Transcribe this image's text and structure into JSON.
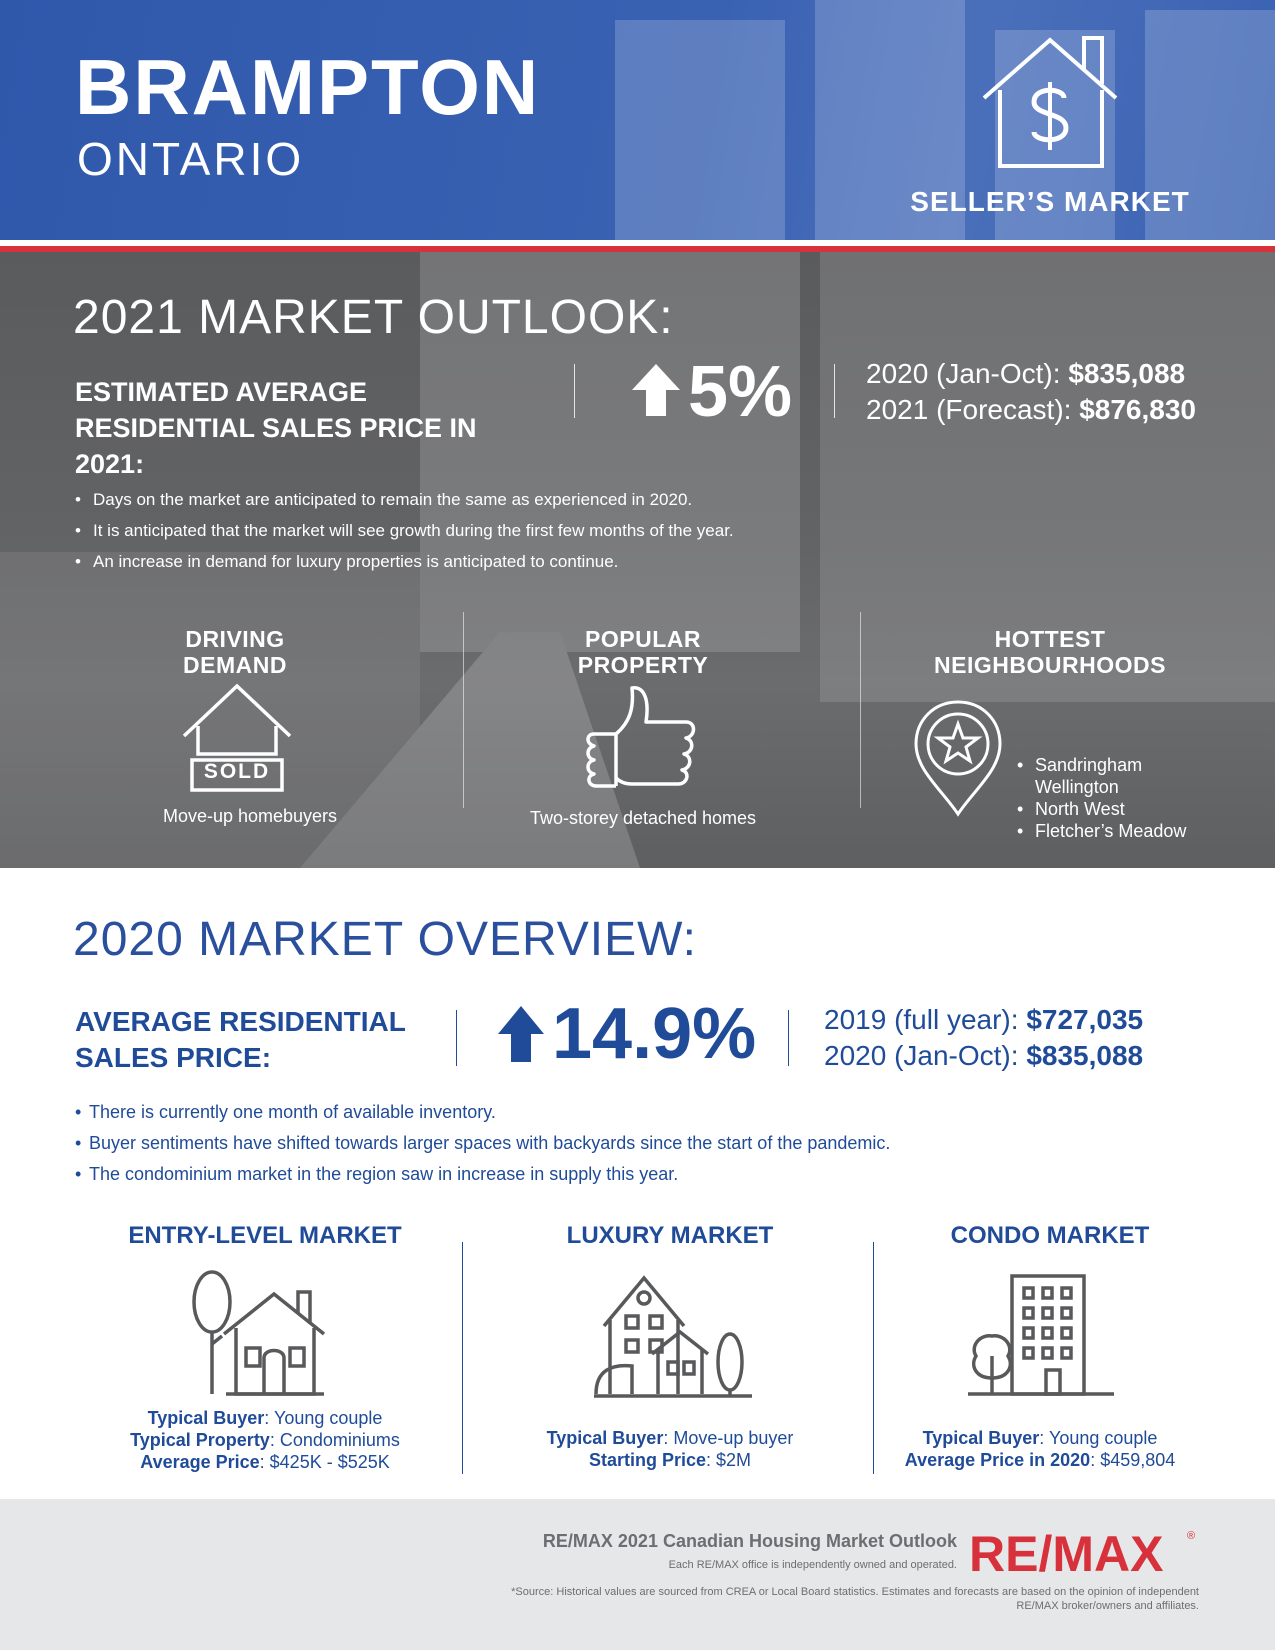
{
  "header": {
    "city": "BRAMPTON",
    "province": "ONTARIO",
    "market_type": "SELLER’S MARKET",
    "icon": "house-dollar-icon",
    "bg_color": "#3a62b3",
    "stripe_color": "#d7313c"
  },
  "outlook": {
    "title": "2021 MARKET OUTLOOK:",
    "estimate_label": "ESTIMATED AVERAGE RESIDENTIAL SALES PRICE IN 2021:",
    "change": "5%",
    "prices": [
      {
        "label": "2020 (Jan-Oct):",
        "value": "$835,088"
      },
      {
        "label": "2021 (Forecast):",
        "value": "$876,830"
      }
    ],
    "bullets": [
      "Days on the market are anticipated to remain the same as experienced in 2020.",
      "It is anticipated that the market will see growth during the first few months of the year.",
      "An increase in demand for luxury properties is anticipated to continue."
    ],
    "columns": {
      "driving_demand": {
        "heading_line1": "DRIVING",
        "heading_line2": "DEMAND",
        "sign_text": "SOLD",
        "caption": "Move-up homebuyers"
      },
      "popular_property": {
        "heading_line1": "POPULAR",
        "heading_line2": "PROPERTY",
        "caption": "Two-storey detached homes"
      },
      "hottest_neighbourhoods": {
        "heading_line1": "HOTTEST",
        "heading_line2": "NEIGHBOURHOODS",
        "items": [
          "Sandringham Wellington",
          "North West",
          "Fletcher’s Meadow"
        ]
      }
    }
  },
  "overview": {
    "title": "2020 MARKET OVERVIEW:",
    "avg_label": "AVERAGE RESIDENTIAL SALES PRICE:",
    "change": "14.9%",
    "prices": [
      {
        "label": "2019 (full year):",
        "value": "$727,035"
      },
      {
        "label": "2020 (Jan-Oct):",
        "value": "$835,088"
      }
    ],
    "bullets": [
      "There is currently one month of available inventory.",
      "Buyer sentiments have shifted towards larger spaces with backyards since the start of the pandemic.",
      "The condominium market in the region saw in increase in supply this year."
    ],
    "markets": {
      "entry": {
        "heading": "ENTRY-LEVEL MARKET",
        "rows": [
          {
            "label": "Typical Buyer",
            "value": ": Young couple"
          },
          {
            "label": "Typical Property",
            "value": ": Condominiums"
          },
          {
            "label": "Average Price",
            "value": ": $425K - $525K"
          }
        ]
      },
      "luxury": {
        "heading": "LUXURY MARKET",
        "rows": [
          {
            "label": "Typical Buyer",
            "value": ": Move-up buyer"
          },
          {
            "label": "Starting Price",
            "value": ": $2M"
          }
        ]
      },
      "condo": {
        "heading": "CONDO MARKET",
        "rows": [
          {
            "label": "Typical Buyer",
            "value": ": Young couple"
          },
          {
            "label": "Average Price in 2020",
            "value": ": $459,804"
          }
        ]
      }
    },
    "accent_color": "#1f4b99"
  },
  "footer": {
    "title": "RE/MAX 2021 Canadian Housing Market Outlook",
    "independent": "Each RE/MAX office is independently owned and operated.",
    "source": "*Source: Historical values are sourced from CREA or Local Board statistics. Estimates and forecasts are based on the opinion of independent RE/MAX broker/owners and affiliates.",
    "logo_text": "RE/MAX",
    "logo_mark": "®",
    "logo_color": "#d7313c"
  }
}
